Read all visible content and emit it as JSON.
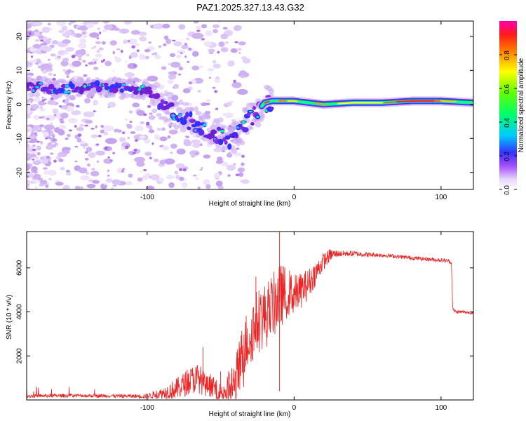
{
  "title": "PAZ1.2025.327.13.43.G32",
  "chart_data": [
    {
      "type": "heatmap",
      "name": "spectrogram",
      "xlabel": "Height of straight line (km)",
      "ylabel": "Frequency (Hz)",
      "xlim": [
        -182,
        122
      ],
      "ylim": [
        -25,
        24.5
      ],
      "xticks": [
        -100,
        0,
        100
      ],
      "xtick_labels": [
        "-100",
        "0",
        "100"
      ],
      "yticks": [
        -20,
        -10,
        0,
        10,
        20
      ],
      "ytick_labels": [
        "-20",
        "-10",
        "0",
        "10",
        "20"
      ],
      "ridge": {
        "x": [
          -182,
          -160,
          -140,
          -120,
          -100,
          -95,
          -90,
          -80,
          -70,
          -60,
          -50,
          -45,
          -40,
          -35,
          -30,
          -25,
          -20,
          -15,
          -10,
          0,
          10,
          20,
          40,
          60,
          80,
          100,
          122
        ],
        "y": [
          5.5,
          4.5,
          5,
          5,
          4.5,
          2.5,
          -1,
          -3,
          -5,
          -7,
          -9,
          -11,
          -9,
          -7,
          -4,
          -2,
          0.5,
          1,
          1,
          1,
          0.5,
          0,
          0.5,
          0.5,
          1,
          1,
          0.5
        ]
      },
      "colorbar": {
        "label": "Normalized spectral amplitude",
        "range": [
          0,
          1
        ],
        "ticks": [
          0.0,
          0.2,
          0.4,
          0.6,
          0.8
        ],
        "tick_labels": [
          "0.0",
          "0.2",
          "0.4",
          "0.6",
          "0.8"
        ],
        "colors": [
          "#ffffff",
          "#c9a8f2",
          "#8a2be2",
          "#3030ff",
          "#00ffff",
          "#00ff00",
          "#ffff00",
          "#ff8000",
          "#ff0000",
          "#ff00a0"
        ]
      }
    },
    {
      "type": "line",
      "name": "snr",
      "xlabel": "Height of straight line (km)",
      "ylabel": "SNR (10 * v/v)",
      "xlim": [
        -182,
        122
      ],
      "ylim": [
        0,
        7650
      ],
      "xticks": [
        -100,
        0,
        100
      ],
      "xtick_labels": [
        "-100",
        "0",
        "100"
      ],
      "yticks": [
        2000,
        4000,
        6000
      ],
      "ytick_labels": [
        "2000",
        "4000",
        "6000"
      ],
      "series_color": "#ee2222",
      "envelope": {
        "x": [
          -182,
          -150,
          -120,
          -100,
          -90,
          -80,
          -70,
          -65,
          -60,
          -55,
          -50,
          -45,
          -40,
          -35,
          -30,
          -25,
          -20,
          -15,
          -10,
          -5,
          0,
          5,
          10,
          15,
          20,
          25,
          30,
          40,
          50,
          60,
          70,
          80,
          90,
          100,
          105,
          107,
          108,
          110,
          115,
          122
        ],
        "y": [
          180,
          200,
          180,
          170,
          300,
          500,
          900,
          1000,
          650,
          600,
          350,
          500,
          700,
          2200,
          3000,
          3600,
          3800,
          4200,
          4700,
          4900,
          4800,
          5000,
          5300,
          5800,
          6300,
          6600,
          6650,
          6650,
          6600,
          6580,
          6520,
          6450,
          6400,
          6350,
          6320,
          6250,
          4100,
          4000,
          4000,
          3950
        ]
      },
      "noise_amplitude": {
        "x": [
          -182,
          -110,
          -100,
          -90,
          -80,
          -65,
          -60,
          -50,
          -40,
          -30,
          -20,
          -10,
          -5,
          0,
          10,
          20,
          30,
          60,
          100,
          122
        ],
        "y": [
          80,
          80,
          120,
          250,
          500,
          700,
          500,
          400,
          1200,
          1500,
          1500,
          1500,
          1200,
          900,
          700,
          400,
          150,
          90,
          90,
          70
        ]
      },
      "spikes": [
        {
          "x": -10,
          "y": 7650
        },
        {
          "x": -10,
          "y": 400
        },
        {
          "x": -62,
          "y": 2400
        },
        {
          "x": -50,
          "y": 1300
        },
        {
          "x": -26,
          "y": 5600
        }
      ]
    }
  ]
}
